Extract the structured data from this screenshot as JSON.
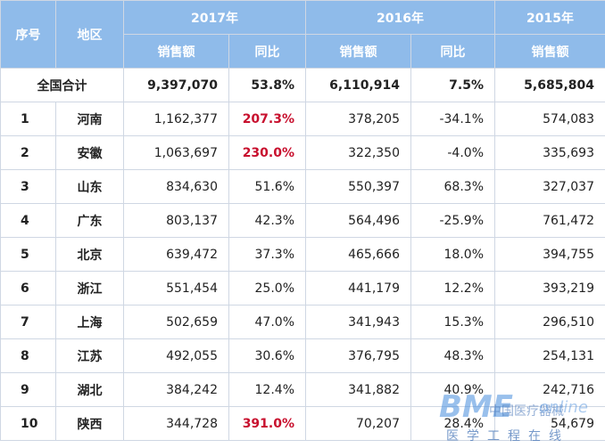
{
  "header": {
    "col_index": "序号",
    "col_region": "地区",
    "year_2017": "2017年",
    "year_2016": "2016年",
    "year_2015": "2015年",
    "sales": "销售额",
    "yoy": "同比"
  },
  "total": {
    "label": "全国合计",
    "sales_2017": "9,397,070",
    "yoy_2017": "53.8%",
    "sales_2016": "6,110,914",
    "yoy_2016": "7.5%",
    "sales_2015": "5,685,804"
  },
  "rows": [
    {
      "idx": "1",
      "region": "河南",
      "s17": "1,162,377",
      "y17": "207.3%",
      "s16": "378,205",
      "y16": "-34.1%",
      "s15": "574,083"
    },
    {
      "idx": "2",
      "region": "安徽",
      "s17": "1,063,697",
      "y17": "230.0%",
      "s16": "322,350",
      "y16": "-4.0%",
      "s15": "335,693"
    },
    {
      "idx": "3",
      "region": "山东",
      "s17": "834,630",
      "y17": "51.6%",
      "s16": "550,397",
      "y16": "68.3%",
      "s15": "327,037"
    },
    {
      "idx": "4",
      "region": "广东",
      "s17": "803,137",
      "y17": "42.3%",
      "s16": "564,496",
      "y16": "-25.9%",
      "s15": "761,472"
    },
    {
      "idx": "5",
      "region": "北京",
      "s17": "639,472",
      "y17": "37.3%",
      "s16": "465,666",
      "y16": "18.0%",
      "s15": "394,755"
    },
    {
      "idx": "6",
      "region": "浙江",
      "s17": "551,454",
      "y17": "25.0%",
      "s16": "441,179",
      "y16": "12.2%",
      "s15": "393,219"
    },
    {
      "idx": "7",
      "region": "上海",
      "s17": "502,659",
      "y17": "47.0%",
      "s16": "341,943",
      "y16": "15.3%",
      "s15": "296,510"
    },
    {
      "idx": "8",
      "region": "江苏",
      "s17": "492,055",
      "y17": "30.6%",
      "s16": "376,795",
      "y16": "48.3%",
      "s15": "254,131"
    },
    {
      "idx": "9",
      "region": "湖北",
      "s17": "384,242",
      "y17": "12.4%",
      "s16": "341,882",
      "y16": "40.9%",
      "s15": "242,716"
    },
    {
      "idx": "10",
      "region": "陕西",
      "s17": "344,728",
      "y17": "391.0%",
      "s16": "70,207",
      "y16": "28.4%",
      "s15": "54,679"
    }
  ],
  "highlight_color": "#c8102e",
  "header_bg": "#8fbbea",
  "watermark": {
    "logo": "BME",
    "cn": "中国医疗器械",
    "online": "online",
    "sub": "医学工程在线"
  }
}
